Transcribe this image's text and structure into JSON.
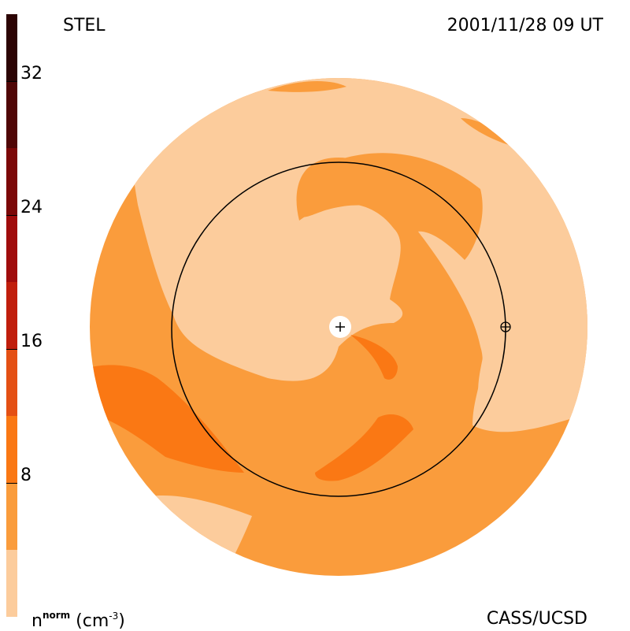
{
  "observatory_label": "STEL",
  "timestamp_label": "2001/11/28 09 UT",
  "credit_label": "CASS/UCSD",
  "units": {
    "quantity": "n",
    "superscript": "norm",
    "unit": "(cm",
    "unit_exponent": "-3",
    "unit_close": ")"
  },
  "colorbar": {
    "tick_labels": [
      "8",
      "16",
      "24",
      "32"
    ],
    "ticks": [
      8,
      16,
      24,
      32
    ],
    "range": [
      0,
      36
    ],
    "bands": [
      {
        "from": 0,
        "to": 4,
        "color": "#FCCC9C"
      },
      {
        "from": 4,
        "to": 8,
        "color": "#FA9C3C"
      },
      {
        "from": 8,
        "to": 12,
        "color": "#FA7814"
      },
      {
        "from": 12,
        "to": 16,
        "color": "#E45014"
      },
      {
        "from": 16,
        "to": 20,
        "color": "#C01E0C"
      },
      {
        "from": 20,
        "to": 24,
        "color": "#A00C0C"
      },
      {
        "from": 24,
        "to": 28,
        "color": "#7C0808"
      },
      {
        "from": 28,
        "to": 32,
        "color": "#500606"
      },
      {
        "from": 32,
        "to": 36,
        "color": "#2C0404"
      }
    ]
  },
  "markers": {
    "sun": "plus-symbol",
    "earth": "circled-plus-symbol"
  }
}
